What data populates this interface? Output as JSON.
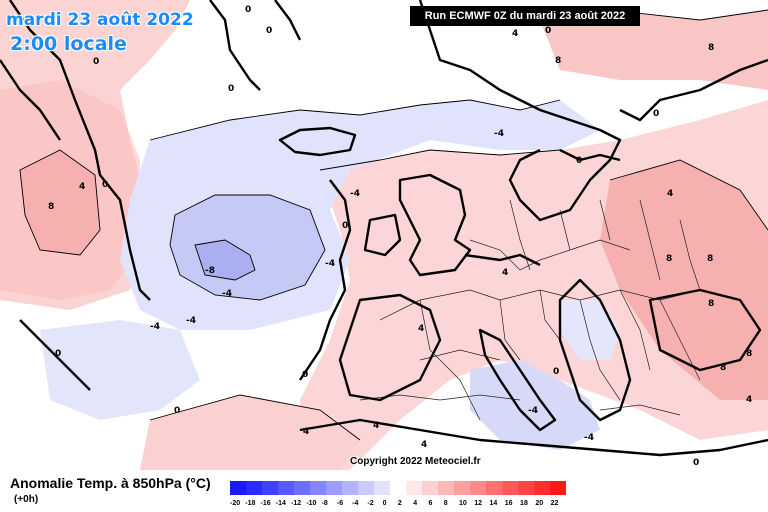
{
  "header": {
    "date": "mardi 23 août 2022",
    "time": "2:00 locale",
    "run": "Run ECMWF 0Z du mardi 23 août 2022"
  },
  "copyright": "Copyright 2022 Meteociel.fr",
  "legend": {
    "title": "Anomalie Temp. à 850hPa (°C)",
    "subtitle": "(+0h)",
    "ticks": [
      "-20",
      "-18",
      "-16",
      "-14",
      "-12",
      "-10",
      "-8",
      "-6",
      "-4",
      "-2",
      "0",
      "2",
      "4",
      "6",
      "8",
      "10",
      "12",
      "14",
      "16",
      "18",
      "20",
      "22"
    ],
    "colors": [
      "#1a1aff",
      "#2a2aff",
      "#4040ff",
      "#5858ff",
      "#6e6eff",
      "#8585ff",
      "#9c9cff",
      "#b3b3ff",
      "#cacaff",
      "#e2e2ff",
      "#ffffff",
      "#ffe8e8",
      "#ffd0d0",
      "#ffb8b8",
      "#ffa0a0",
      "#ff8888",
      "#ff7070",
      "#ff5a5a",
      "#ff4444",
      "#ff2e2e",
      "#ff1818"
    ]
  },
  "map_labels": {
    "contour_values": [
      "0",
      "0",
      "0",
      "0",
      "0",
      "0",
      "0",
      "0",
      "0",
      "0",
      "0",
      "0",
      "0",
      "0",
      "4",
      "4",
      "4",
      "4",
      "4",
      "4",
      "4",
      "4",
      "4",
      "8",
      "8",
      "8",
      "8",
      "8",
      "8",
      "8",
      "8",
      "-4",
      "-4",
      "-4",
      "-4",
      "-4",
      "-4",
      "-4",
      "-4",
      "-8"
    ]
  },
  "colors": {
    "warm_light": "#fde3e3",
    "warm_mid": "#f9bfbf",
    "warm_strong": "#f49a9a",
    "cool_light": "#dfe3fb",
    "cool_mid": "#b9bff3",
    "cool_strong": "#9aa2ee"
  }
}
